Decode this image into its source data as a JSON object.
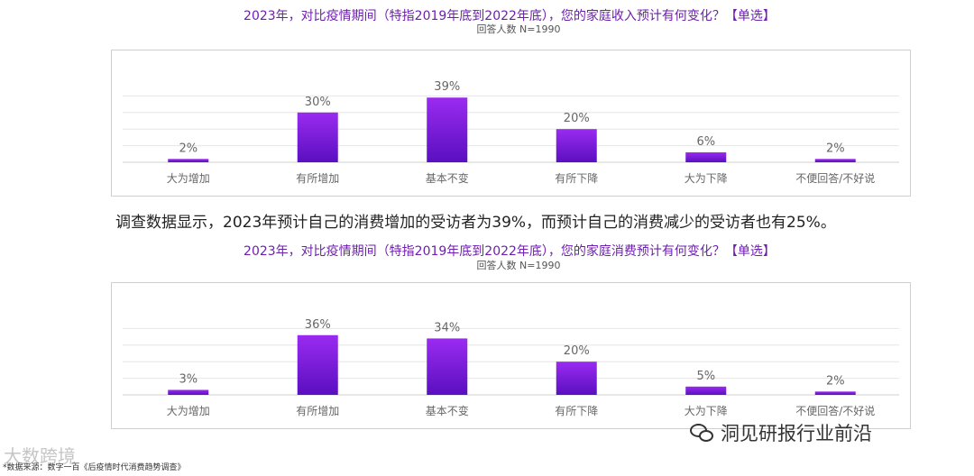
{
  "caption": "调查数据显示，2023年预计自己的消费增加的受访者为39%，而预计自己的消费减少的受访者也有25%。",
  "source": "*数据来源：数字一百《后疫情时代消费趋势调查》",
  "watermark_left": "大数跨境",
  "watermark_right": "洞见研报行业前沿",
  "colors": {
    "bar_top": "#9a2bf0",
    "bar_bottom": "#5a0fc0",
    "title": "#6f1fb0"
  },
  "chart_data": [
    {
      "type": "bar",
      "title": "2023年，对比疫情期间（特指2019年底到2022年底），您的家庭收入预计有何变化？【单选】",
      "subtitle": "回答人数 N=1990",
      "categories": [
        "大为增加",
        "有所增加",
        "基本不变",
        "有所下降",
        "大为下降",
        "不便回答/不好说"
      ],
      "values": [
        2,
        30,
        39,
        20,
        6,
        2
      ],
      "value_labels": [
        "2%",
        "30%",
        "39%",
        "20%",
        "6%",
        "2%"
      ],
      "ylim": [
        0,
        45
      ],
      "grid": true,
      "legend": "none"
    },
    {
      "type": "bar",
      "title": "2023年，对比疫情期间（特指2019年底到2022年底），您的家庭消费预计有何变化？【单选】",
      "subtitle": "回答人数 N=1990",
      "categories": [
        "大为增加",
        "有所增加",
        "基本不变",
        "有所下降",
        "大为下降",
        "不便回答/不好说"
      ],
      "values": [
        3,
        36,
        34,
        20,
        5,
        2
      ],
      "value_labels": [
        "3%",
        "36%",
        "34%",
        "20%",
        "5%",
        "2%"
      ],
      "ylim": [
        0,
        45
      ],
      "grid": true,
      "legend": "none"
    }
  ]
}
